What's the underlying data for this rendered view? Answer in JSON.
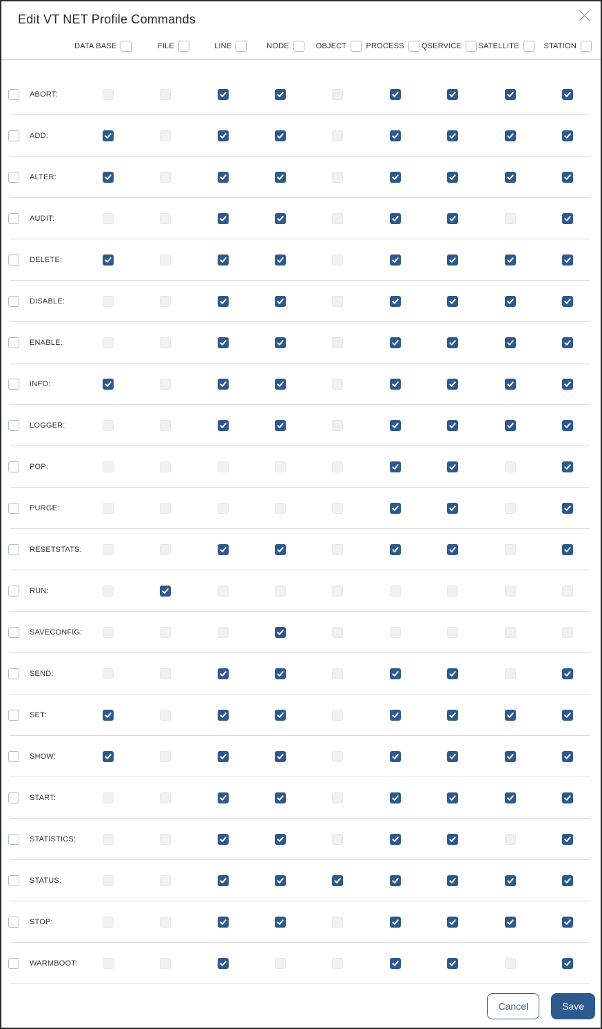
{
  "dialog": {
    "title": "Edit VT NET Profile Commands",
    "close_icon": "close-x"
  },
  "colors": {
    "accent": "#2e598c",
    "checked_checkbox": "#2e598c",
    "unchecked_grid_checkbox": "#f1f1f2",
    "divider": "#dcdcdc"
  },
  "columns": [
    {
      "label": "DATA BASE",
      "checked": false
    },
    {
      "label": "FILE",
      "checked": false
    },
    {
      "label": "LINE",
      "checked": false
    },
    {
      "label": "NODE",
      "checked": false
    },
    {
      "label": "OBJECT",
      "checked": false
    },
    {
      "label": "PROCESS",
      "checked": false
    },
    {
      "label": "QSERVICE",
      "checked": false
    },
    {
      "label": "SATELLITE",
      "checked": false
    },
    {
      "label": "STATION",
      "checked": false
    }
  ],
  "rows": [
    {
      "label": "ABORT:",
      "row_checked": false,
      "cells": [
        0,
        0,
        1,
        1,
        0,
        1,
        1,
        1,
        1
      ]
    },
    {
      "label": "ADD:",
      "row_checked": false,
      "cells": [
        1,
        0,
        1,
        1,
        0,
        1,
        1,
        1,
        1
      ]
    },
    {
      "label": "ALTER:",
      "row_checked": false,
      "cells": [
        1,
        0,
        1,
        1,
        0,
        1,
        1,
        1,
        1
      ]
    },
    {
      "label": "AUDIT:",
      "row_checked": false,
      "cells": [
        0,
        0,
        1,
        1,
        0,
        1,
        1,
        0,
        1
      ]
    },
    {
      "label": "DELETE:",
      "row_checked": false,
      "cells": [
        1,
        0,
        1,
        1,
        0,
        1,
        1,
        1,
        1
      ]
    },
    {
      "label": "DISABLE:",
      "row_checked": false,
      "cells": [
        0,
        0,
        1,
        1,
        0,
        1,
        1,
        1,
        1
      ]
    },
    {
      "label": "ENABLE:",
      "row_checked": false,
      "cells": [
        0,
        0,
        1,
        1,
        0,
        1,
        1,
        1,
        1
      ]
    },
    {
      "label": "INFO:",
      "row_checked": false,
      "cells": [
        1,
        0,
        1,
        1,
        0,
        1,
        1,
        1,
        1
      ]
    },
    {
      "label": "LOGGER:",
      "row_checked": false,
      "cells": [
        0,
        0,
        1,
        1,
        0,
        1,
        1,
        1,
        1
      ]
    },
    {
      "label": "POP:",
      "row_checked": false,
      "cells": [
        0,
        0,
        0,
        0,
        0,
        1,
        1,
        0,
        1
      ]
    },
    {
      "label": "PURGE:",
      "row_checked": false,
      "cells": [
        0,
        0,
        0,
        0,
        0,
        1,
        1,
        0,
        1
      ]
    },
    {
      "label": "RESETSTATS:",
      "row_checked": false,
      "cells": [
        0,
        0,
        1,
        1,
        0,
        1,
        1,
        0,
        1
      ]
    },
    {
      "label": "RUN:",
      "row_checked": false,
      "cells": [
        0,
        1,
        0,
        0,
        0,
        0,
        0,
        0,
        0
      ]
    },
    {
      "label": "SAVECONFIG:",
      "row_checked": false,
      "cells": [
        0,
        0,
        0,
        1,
        0,
        0,
        0,
        0,
        0
      ]
    },
    {
      "label": "SEND:",
      "row_checked": false,
      "cells": [
        0,
        0,
        1,
        1,
        0,
        1,
        1,
        0,
        1
      ]
    },
    {
      "label": "SET:",
      "row_checked": false,
      "cells": [
        1,
        0,
        1,
        1,
        0,
        1,
        1,
        1,
        1
      ]
    },
    {
      "label": "SHOW:",
      "row_checked": false,
      "cells": [
        1,
        0,
        1,
        1,
        0,
        1,
        1,
        1,
        1
      ]
    },
    {
      "label": "START:",
      "row_checked": false,
      "cells": [
        0,
        0,
        1,
        1,
        0,
        1,
        1,
        1,
        1
      ]
    },
    {
      "label": "STATISTICS:",
      "row_checked": false,
      "cells": [
        0,
        0,
        1,
        1,
        0,
        1,
        1,
        0,
        1
      ]
    },
    {
      "label": "STATUS:",
      "row_checked": false,
      "cells": [
        0,
        0,
        1,
        1,
        1,
        1,
        1,
        1,
        1
      ]
    },
    {
      "label": "STOP:",
      "row_checked": false,
      "cells": [
        0,
        0,
        1,
        1,
        0,
        1,
        1,
        1,
        1
      ]
    },
    {
      "label": "WARMBOOT:",
      "row_checked": false,
      "cells": [
        0,
        0,
        1,
        0,
        0,
        1,
        1,
        0,
        1
      ]
    }
  ],
  "footer": {
    "cancel_label": "Cancel",
    "save_label": "Save"
  }
}
